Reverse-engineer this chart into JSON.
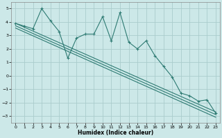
{
  "xlabel": "Humidex (Indice chaleur)",
  "xlim": [
    -0.5,
    23.5
  ],
  "ylim": [
    -3.5,
    5.5
  ],
  "yticks": [
    -3,
    -2,
    -1,
    0,
    1,
    2,
    3,
    4,
    5
  ],
  "xticks": [
    0,
    1,
    2,
    3,
    4,
    5,
    6,
    7,
    8,
    9,
    10,
    11,
    12,
    13,
    14,
    15,
    16,
    17,
    18,
    19,
    20,
    21,
    22,
    23
  ],
  "bg_color": "#cce8e8",
  "line_color": "#2d7a72",
  "grid_color": "#aacccc",
  "data_x": [
    0,
    1,
    2,
    3,
    4,
    5,
    6,
    7,
    8,
    9,
    10,
    11,
    12,
    13,
    14,
    15,
    16,
    17,
    18,
    19,
    20,
    21,
    22,
    23
  ],
  "data_y": [
    3.9,
    3.7,
    3.5,
    5.0,
    4.1,
    3.3,
    1.3,
    2.8,
    3.1,
    3.1,
    4.4,
    2.6,
    4.7,
    2.5,
    2.0,
    2.6,
    1.5,
    0.7,
    -0.1,
    -1.3,
    -1.5,
    -1.9,
    -1.8,
    -2.8
  ],
  "reg_lines": [
    [
      3.9,
      -2.7
    ],
    [
      3.55,
      -3.1
    ],
    [
      3.72,
      -2.9
    ]
  ]
}
